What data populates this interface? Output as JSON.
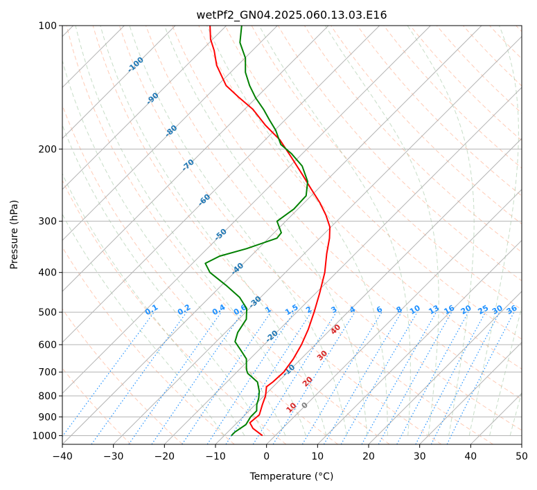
{
  "chart_data": {
    "type": "line",
    "title": "wetPf2_GN04.2025.060.13.03.E16",
    "xlabel": "Temperature (°C)",
    "ylabel": "Pressure (hPa)",
    "xlim": [
      -40,
      50
    ],
    "ylim": [
      1050,
      100
    ],
    "y_scale": "log",
    "x_ticks": [
      -40,
      -30,
      -20,
      -10,
      0,
      10,
      20,
      30,
      40,
      50
    ],
    "y_ticks": [
      100,
      200,
      300,
      400,
      500,
      600,
      700,
      800,
      900,
      1000
    ],
    "grid": "horizontal gridlines at pressure ticks; skewed isotherms every 10 °C",
    "colors": {
      "temperature": "#ff0000",
      "dewpoint": "#008000",
      "isotherm": "#b3b3b3",
      "dry_adiabat": "#ffa07a",
      "moist_adiabat": "#8fbc8f",
      "mixing_ratio": "#1e90ff",
      "isotherm_label": "#1f77b4",
      "adiabat_label": "#d62728",
      "zero_label": "#808080"
    },
    "series": [
      {
        "role": "temperature",
        "points": [
          {
            "p": 1000,
            "t": -2.5
          },
          {
            "p": 960,
            "t": -5.8
          },
          {
            "p": 930,
            "t": -7.5
          },
          {
            "p": 890,
            "t": -7.2
          },
          {
            "p": 840,
            "t": -8.6
          },
          {
            "p": 800,
            "t": -9.7
          },
          {
            "p": 760,
            "t": -11.3
          },
          {
            "p": 740,
            "t": -11.0
          },
          {
            "p": 700,
            "t": -10.8
          },
          {
            "p": 650,
            "t": -11.5
          },
          {
            "p": 600,
            "t": -12.7
          },
          {
            "p": 550,
            "t": -14.4
          },
          {
            "p": 500,
            "t": -16.6
          },
          {
            "p": 450,
            "t": -19.2
          },
          {
            "p": 400,
            "t": -22.3
          },
          {
            "p": 360,
            "t": -25.6
          },
          {
            "p": 330,
            "t": -28.1
          },
          {
            "p": 310,
            "t": -30.2
          },
          {
            "p": 290,
            "t": -33.3
          },
          {
            "p": 270,
            "t": -37.0
          },
          {
            "p": 250,
            "t": -41.4
          },
          {
            "p": 230,
            "t": -46.1
          },
          {
            "p": 210,
            "t": -51.3
          },
          {
            "p": 190,
            "t": -57.1
          },
          {
            "p": 175,
            "t": -62.8
          },
          {
            "p": 160,
            "t": -68.4
          },
          {
            "p": 150,
            "t": -73.3
          },
          {
            "p": 140,
            "t": -78.3
          },
          {
            "p": 125,
            "t": -84.1
          },
          {
            "p": 115,
            "t": -87.5
          },
          {
            "p": 108,
            "t": -90.4
          },
          {
            "p": 100,
            "t": -93.2
          }
        ]
      },
      {
        "role": "dewpoint",
        "points": [
          {
            "p": 1000,
            "t": -8.6
          },
          {
            "p": 980,
            "t": -8.6
          },
          {
            "p": 940,
            "t": -7.9
          },
          {
            "p": 900,
            "t": -8.5
          },
          {
            "p": 870,
            "t": -8.5
          },
          {
            "p": 840,
            "t": -9.7
          },
          {
            "p": 810,
            "t": -10.6
          },
          {
            "p": 780,
            "t": -11.8
          },
          {
            "p": 740,
            "t": -14.0
          },
          {
            "p": 705,
            "t": -17.6
          },
          {
            "p": 690,
            "t": -18.6
          },
          {
            "p": 650,
            "t": -20.7
          },
          {
            "p": 620,
            "t": -23.4
          },
          {
            "p": 590,
            "t": -26.3
          },
          {
            "p": 560,
            "t": -27.6
          },
          {
            "p": 520,
            "t": -28.5
          },
          {
            "p": 490,
            "t": -30.5
          },
          {
            "p": 460,
            "t": -34.1
          },
          {
            "p": 430,
            "t": -39.1
          },
          {
            "p": 400,
            "t": -44.8
          },
          {
            "p": 380,
            "t": -47.5
          },
          {
            "p": 365,
            "t": -46.1
          },
          {
            "p": 350,
            "t": -42.3
          },
          {
            "p": 330,
            "t": -38.4
          },
          {
            "p": 320,
            "t": -38.6
          },
          {
            "p": 300,
            "t": -41.7
          },
          {
            "p": 280,
            "t": -40.8
          },
          {
            "p": 260,
            "t": -41.0
          },
          {
            "p": 240,
            "t": -43.5
          },
          {
            "p": 220,
            "t": -47.6
          },
          {
            "p": 205,
            "t": -52.2
          },
          {
            "p": 195,
            "t": -56.0
          },
          {
            "p": 180,
            "t": -59.8
          },
          {
            "p": 170,
            "t": -63.0
          },
          {
            "p": 160,
            "t": -66.3
          },
          {
            "p": 150,
            "t": -70.1
          },
          {
            "p": 140,
            "t": -73.7
          },
          {
            "p": 130,
            "t": -77.1
          },
          {
            "p": 120,
            "t": -79.9
          },
          {
            "p": 110,
            "t": -84.0
          },
          {
            "p": 100,
            "t": -87.0
          }
        ]
      }
    ],
    "isotherm_labels": [
      -100,
      -90,
      -80,
      -70,
      -60,
      -50,
      -40,
      -30,
      -20,
      -10,
      0
    ],
    "mixing_ratio_labels": [
      "0.1",
      "0.2",
      "0.4",
      "0.6",
      "1",
      "1.5",
      "2",
      "3",
      "4",
      "6",
      "8",
      "10",
      "13",
      "16",
      "20",
      "25",
      "30",
      "36"
    ],
    "mixing_ratio_values": [
      0.1,
      0.2,
      0.4,
      0.6,
      1,
      1.5,
      2,
      3,
      4,
      6,
      8,
      10,
      13,
      16,
      20,
      25,
      30,
      36
    ],
    "adiabat_labels": [
      10,
      20,
      30,
      40
    ]
  }
}
